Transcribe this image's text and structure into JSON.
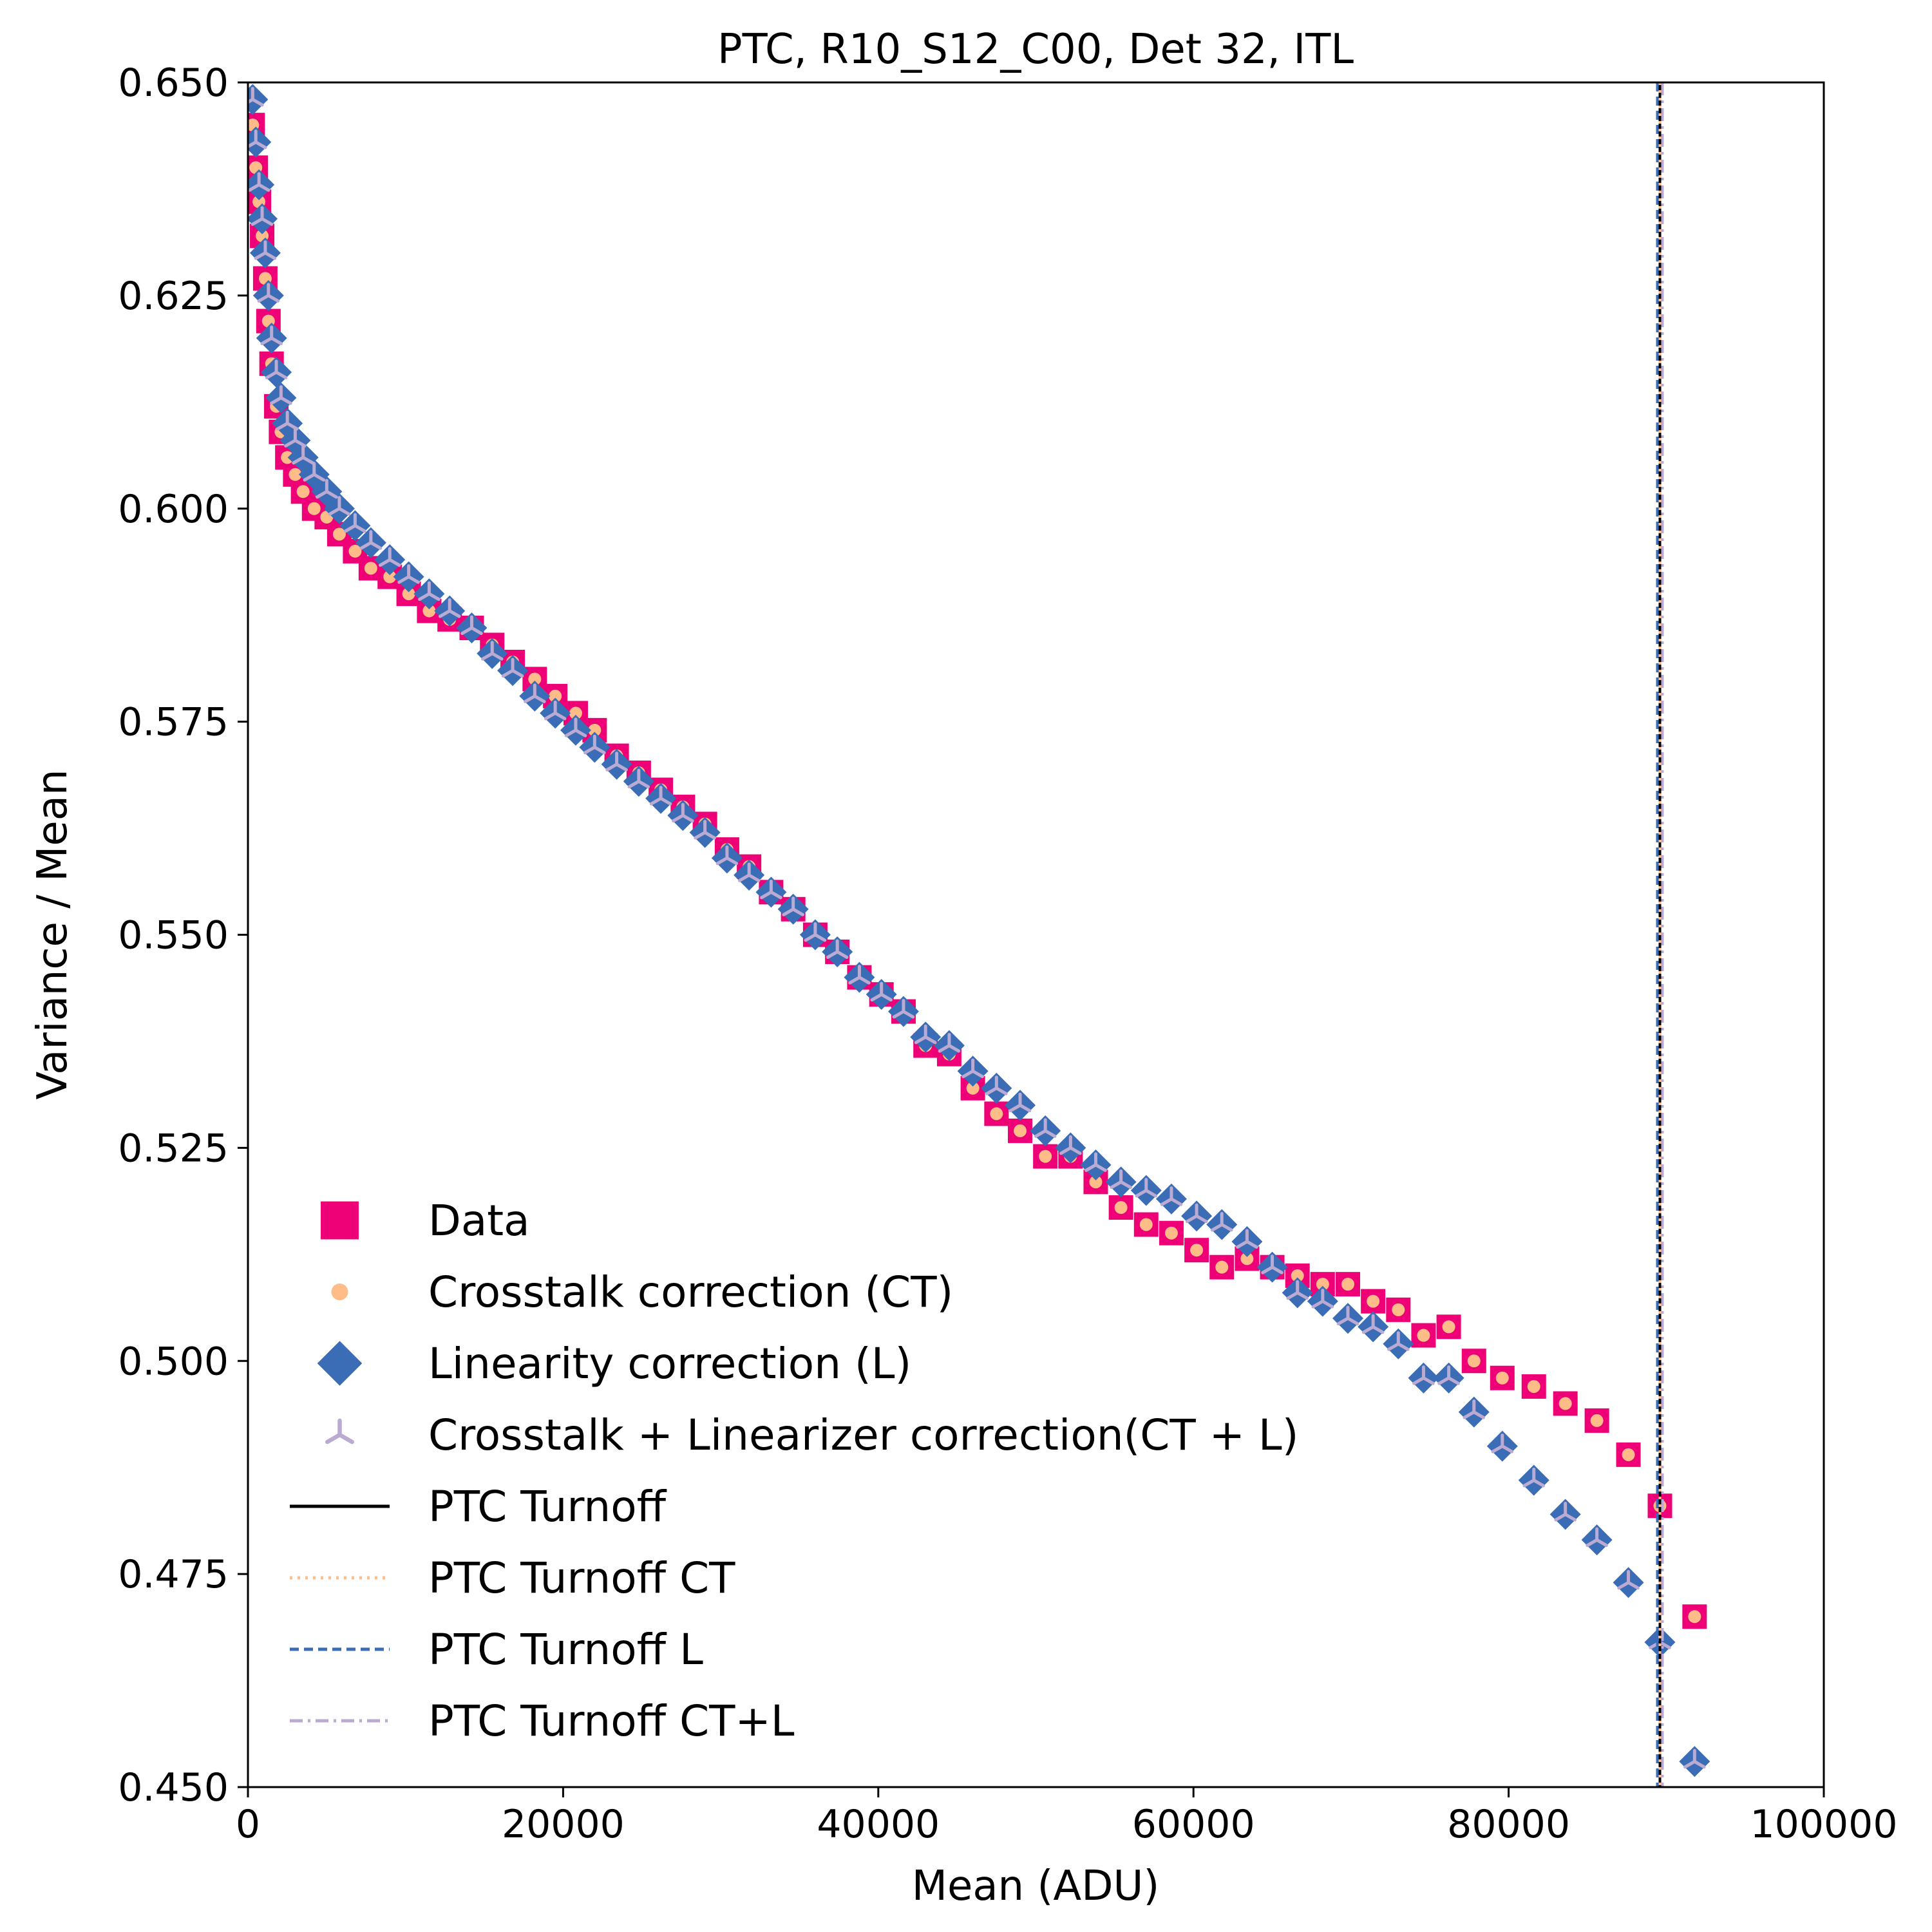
{
  "chart_data": {
    "type": "scatter",
    "title": "PTC, R10_S12_C00, Det 32, ITL",
    "xlabel": "Mean  (ADU)",
    "ylabel": "Variance / Mean",
    "xlim": [
      0,
      100000
    ],
    "ylim": [
      0.45,
      0.65
    ],
    "xticks": [
      0,
      20000,
      40000,
      60000,
      80000,
      100000
    ],
    "xtick_labels": [
      "0",
      "20000",
      "40000",
      "60000",
      "80000",
      "100000"
    ],
    "yticks": [
      0.45,
      0.475,
      0.5,
      0.525,
      0.55,
      0.575,
      0.6,
      0.625,
      0.65
    ],
    "ytick_labels": [
      "0.450",
      "0.475",
      "0.500",
      "0.525",
      "0.550",
      "0.575",
      "0.600",
      "0.625",
      "0.650"
    ],
    "grid": false,
    "legend_position": "lower-left",
    "colors": {
      "data": "#ee0077",
      "ct": "#ffbb88",
      "l": "#3a6db5",
      "ctl": "#bbaad2",
      "turnoff": "#000000"
    },
    "series": [
      {
        "name": "Data",
        "marker": "square",
        "x": [
          300,
          500,
          700,
          900,
          1100,
          1300,
          1500,
          1800,
          2100,
          2500,
          3000,
          3500,
          4200,
          5000,
          5800,
          6800,
          7800,
          9000,
          10200,
          11500,
          12800,
          14200,
          15500,
          16800,
          18200,
          19500,
          20800,
          22000,
          23400,
          24800,
          26200,
          27600,
          29000,
          30400,
          31800,
          33200,
          34600,
          36000,
          37400,
          38800,
          40200,
          41600,
          43000,
          44500,
          46000,
          47500,
          49000,
          50600,
          52200,
          53800,
          55400,
          57000,
          58600,
          60200,
          61800,
          63400,
          65000,
          66600,
          68200,
          69800,
          71400,
          73000,
          74600,
          76200,
          77800,
          79600,
          81600,
          83600,
          85600,
          87600,
          89600,
          91800
        ],
        "y": [
          0.645,
          0.64,
          0.636,
          0.632,
          0.627,
          0.622,
          0.617,
          0.612,
          0.609,
          0.606,
          0.604,
          0.602,
          0.6,
          0.599,
          0.597,
          0.595,
          0.593,
          0.592,
          0.59,
          0.588,
          0.587,
          0.586,
          0.584,
          0.582,
          0.58,
          0.578,
          0.576,
          0.574,
          0.571,
          0.569,
          0.567,
          0.565,
          0.563,
          0.56,
          0.558,
          0.555,
          0.553,
          0.55,
          0.548,
          0.545,
          0.543,
          0.541,
          0.537,
          0.536,
          0.532,
          0.529,
          0.527,
          0.524,
          0.524,
          0.521,
          0.518,
          0.516,
          0.515,
          0.513,
          0.511,
          0.512,
          0.511,
          0.51,
          0.509,
          0.509,
          0.507,
          0.506,
          0.503,
          0.504,
          0.5,
          0.498,
          0.497,
          0.495,
          0.493,
          0.489,
          0.483,
          0.47
        ]
      },
      {
        "name": "Crosstalk correction (CT)",
        "marker": "circle",
        "x": [
          300,
          500,
          700,
          900,
          1100,
          1300,
          1500,
          1800,
          2100,
          2500,
          3000,
          3500,
          4200,
          5000,
          5800,
          6800,
          7800,
          9000,
          10200,
          11500,
          12800,
          14200,
          15500,
          16800,
          18200,
          19500,
          20800,
          22000,
          23400,
          24800,
          26200,
          27600,
          29000,
          30400,
          31800,
          33200,
          34600,
          36000,
          37400,
          38800,
          40200,
          41600,
          43000,
          44500,
          46000,
          47500,
          49000,
          50600,
          52200,
          53800,
          55400,
          57000,
          58600,
          60200,
          61800,
          63400,
          65000,
          66600,
          68200,
          69800,
          71400,
          73000,
          74600,
          76200,
          77800,
          79600,
          81600,
          83600,
          85600,
          87600,
          89600,
          91800
        ],
        "y": [
          0.645,
          0.64,
          0.636,
          0.632,
          0.627,
          0.622,
          0.617,
          0.612,
          0.609,
          0.606,
          0.604,
          0.602,
          0.6,
          0.599,
          0.597,
          0.595,
          0.593,
          0.592,
          0.59,
          0.588,
          0.587,
          0.586,
          0.584,
          0.582,
          0.58,
          0.578,
          0.576,
          0.574,
          0.571,
          0.569,
          0.567,
          0.565,
          0.563,
          0.56,
          0.558,
          0.555,
          0.553,
          0.55,
          0.548,
          0.545,
          0.543,
          0.541,
          0.537,
          0.536,
          0.532,
          0.529,
          0.527,
          0.524,
          0.524,
          0.521,
          0.518,
          0.516,
          0.515,
          0.513,
          0.511,
          0.512,
          0.511,
          0.51,
          0.509,
          0.509,
          0.507,
          0.506,
          0.503,
          0.504,
          0.5,
          0.498,
          0.497,
          0.495,
          0.493,
          0.489,
          0.483,
          0.47
        ]
      },
      {
        "name": "Linearity correction (L)",
        "marker": "diamond",
        "x": [
          300,
          500,
          700,
          900,
          1100,
          1300,
          1500,
          1800,
          2100,
          2500,
          3000,
          3500,
          4200,
          5000,
          5800,
          6800,
          7800,
          9000,
          10200,
          11500,
          12800,
          14200,
          15500,
          16800,
          18200,
          19500,
          20800,
          22000,
          23400,
          24800,
          26200,
          27600,
          29000,
          30400,
          31800,
          33200,
          34600,
          36000,
          37400,
          38800,
          40200,
          41600,
          43000,
          44500,
          46000,
          47500,
          49000,
          50600,
          52200,
          53800,
          55400,
          57000,
          58600,
          60200,
          61800,
          63400,
          65000,
          66600,
          68200,
          69800,
          71400,
          73000,
          74600,
          76200,
          77800,
          79600,
          81600,
          83600,
          85600,
          87600,
          89600,
          91800
        ],
        "y": [
          0.648,
          0.643,
          0.638,
          0.634,
          0.63,
          0.625,
          0.62,
          0.616,
          0.613,
          0.61,
          0.608,
          0.606,
          0.604,
          0.602,
          0.6,
          0.598,
          0.596,
          0.594,
          0.592,
          0.59,
          0.588,
          0.586,
          0.583,
          0.581,
          0.578,
          0.576,
          0.574,
          0.572,
          0.57,
          0.568,
          0.566,
          0.564,
          0.562,
          0.559,
          0.557,
          0.555,
          0.553,
          0.55,
          0.548,
          0.545,
          0.543,
          0.541,
          0.538,
          0.537,
          0.534,
          0.532,
          0.53,
          0.527,
          0.525,
          0.523,
          0.521,
          0.52,
          0.519,
          0.517,
          0.516,
          0.514,
          0.511,
          0.508,
          0.507,
          0.505,
          0.504,
          0.502,
          0.498,
          0.498,
          0.494,
          0.49,
          0.486,
          0.482,
          0.479,
          0.474,
          0.467,
          0.453
        ]
      },
      {
        "name": "Crosstalk + Linearizer correction(CT + L)",
        "marker": "tri_down",
        "x": [
          300,
          500,
          700,
          900,
          1100,
          1300,
          1500,
          1800,
          2100,
          2500,
          3000,
          3500,
          4200,
          5000,
          5800,
          6800,
          7800,
          9000,
          10200,
          11500,
          12800,
          14200,
          15500,
          16800,
          18200,
          19500,
          20800,
          22000,
          23400,
          24800,
          26200,
          27600,
          29000,
          30400,
          31800,
          33200,
          34600,
          36000,
          37400,
          38800,
          40200,
          41600,
          43000,
          44500,
          46000,
          47500,
          49000,
          50600,
          52200,
          53800,
          55400,
          57000,
          58600,
          60200,
          61800,
          63400,
          65000,
          66600,
          68200,
          69800,
          71400,
          73000,
          74600,
          76200,
          77800,
          79600,
          81600,
          83600,
          85600,
          87600,
          89600,
          91800
        ],
        "y": [
          0.648,
          0.643,
          0.638,
          0.634,
          0.63,
          0.625,
          0.62,
          0.616,
          0.613,
          0.61,
          0.608,
          0.606,
          0.604,
          0.602,
          0.6,
          0.598,
          0.596,
          0.594,
          0.592,
          0.59,
          0.588,
          0.586,
          0.583,
          0.581,
          0.578,
          0.576,
          0.574,
          0.572,
          0.57,
          0.568,
          0.566,
          0.564,
          0.562,
          0.559,
          0.557,
          0.555,
          0.553,
          0.55,
          0.548,
          0.545,
          0.543,
          0.541,
          0.538,
          0.537,
          0.534,
          0.532,
          0.53,
          0.527,
          0.525,
          0.523,
          0.521,
          0.52,
          0.519,
          0.517,
          0.516,
          0.514,
          0.511,
          0.508,
          0.507,
          0.505,
          0.504,
          0.502,
          0.498,
          0.498,
          0.494,
          0.49,
          0.486,
          0.482,
          0.479,
          0.474,
          0.467,
          0.453
        ]
      }
    ],
    "vlines": [
      {
        "name": "PTC Turnoff",
        "x": 89600,
        "style": "solid",
        "color": "#000000"
      },
      {
        "name": "PTC Turnoff CT",
        "x": 89600,
        "style": "dotted",
        "color": "#ffbb88"
      },
      {
        "name": "PTC Turnoff L",
        "x": 89600,
        "style": "dashed",
        "color": "#3a6db5"
      },
      {
        "name": "PTC Turnoff CT+L",
        "x": 89600,
        "style": "dashdot",
        "color": "#bbaad2"
      }
    ]
  }
}
